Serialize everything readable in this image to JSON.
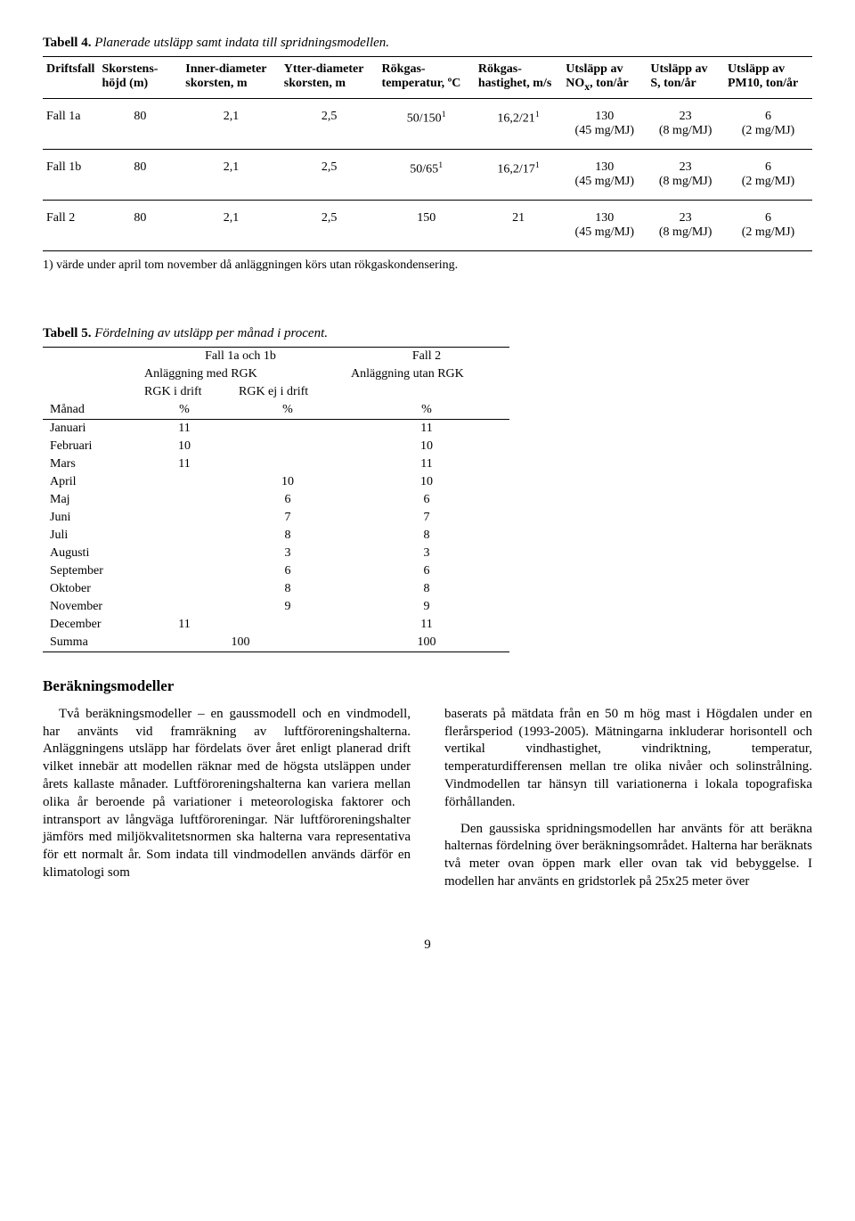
{
  "table4": {
    "caption_label": "Tabell 4.",
    "caption_text": "Planerade utsläpp samt indata till spridningsmodellen.",
    "headers": {
      "c1": "Driftsfall",
      "c2": "Skorstens-höjd (m)",
      "c3": "Inner-diameter skorsten, m",
      "c4": "Ytter-diameter skorsten, m",
      "c5": "Rökgas-temperatur, ºC",
      "c6": "Rökgas-hastighet, m/s",
      "c7a": "Utsläpp av",
      "c7b": "NO",
      "c7c": ", ton/år",
      "c8": "Utsläpp av S, ton/år",
      "c9": "Utsläpp av PM10, ton/år"
    },
    "rows": [
      {
        "name": "Fall 1a",
        "h": "80",
        "id": "2,1",
        "od": "2,5",
        "temp": "50/150",
        "temp_sup": "1",
        "vel": "16,2/21",
        "vel_sup": "1",
        "nox_a": "130",
        "nox_b": "(45 mg/MJ)",
        "s_a": "23",
        "s_b": "(8 mg/MJ)",
        "pm_a": "6",
        "pm_b": "(2 mg/MJ)"
      },
      {
        "name": "Fall 1b",
        "h": "80",
        "id": "2,1",
        "od": "2,5",
        "temp": "50/65",
        "temp_sup": "1",
        "vel": "16,2/17",
        "vel_sup": "1",
        "nox_a": "130",
        "nox_b": "(45 mg/MJ)",
        "s_a": "23",
        "s_b": "(8 mg/MJ)",
        "pm_a": "6",
        "pm_b": "(2 mg/MJ)"
      },
      {
        "name": "Fall 2",
        "h": "80",
        "id": "2,1",
        "od": "2,5",
        "temp": "150",
        "temp_sup": "",
        "vel": "21",
        "vel_sup": "",
        "nox_a": "130",
        "nox_b": "(45 mg/MJ)",
        "s_a": "23",
        "s_b": "(8 mg/MJ)",
        "pm_a": "6",
        "pm_b": "(2 mg/MJ)"
      }
    ],
    "footnote": "1) värde under april tom november då anläggningen körs utan rökgaskondensering."
  },
  "table5": {
    "caption_label": "Tabell 5.",
    "caption_text": "Fördelning av utsläpp per månad i procent.",
    "header1": {
      "a": "Fall 1a och 1b",
      "b": "Fall 2"
    },
    "header2": {
      "a": "Anläggning med RGK",
      "b": "Anläggning utan RGK"
    },
    "header3": {
      "a": "RGK i drift",
      "b": "RGK ej i drift"
    },
    "header4": {
      "m": "Månad",
      "a": "%",
      "b": "%",
      "c": "%"
    },
    "rows": [
      {
        "m": "Januari",
        "a": "11",
        "b": "",
        "c": "11"
      },
      {
        "m": "Februari",
        "a": "10",
        "b": "",
        "c": "10"
      },
      {
        "m": "Mars",
        "a": "11",
        "b": "",
        "c": "11"
      },
      {
        "m": "April",
        "a": "",
        "b": "10",
        "c": "10"
      },
      {
        "m": "Maj",
        "a": "",
        "b": "6",
        "c": "6"
      },
      {
        "m": "Juni",
        "a": "",
        "b": "7",
        "c": "7"
      },
      {
        "m": "Juli",
        "a": "",
        "b": "8",
        "c": "8"
      },
      {
        "m": "Augusti",
        "a": "",
        "b": "3",
        "c": "3"
      },
      {
        "m": "September",
        "a": "",
        "b": "6",
        "c": "6"
      },
      {
        "m": "Oktober",
        "a": "",
        "b": "8",
        "c": "8"
      },
      {
        "m": "November",
        "a": "",
        "b": "9",
        "c": "9"
      },
      {
        "m": "December",
        "a": "11",
        "b": "",
        "c": "11"
      }
    ],
    "sum": {
      "m": "Summa",
      "ab": "100",
      "c": "100"
    }
  },
  "section_heading": "Beräkningsmodeller",
  "body": {
    "left_p1": "Två beräkningsmodeller – en gaussmodell och en vindmodell, har använts vid framräkning av luftföroreningshalterna. Anläggningens utsläpp har fördelats över året enligt planerad drift vilket innebär att modellen räknar med de högsta utsläppen under årets kallaste månader. Luftföroreningshalterna kan variera mellan olika år beroende på variationer i meteorologiska faktorer och intransport av långväga luftföroreningar. När luftföroreningshalter jämförs med miljökvalitetsnormen ska halterna vara representativa för ett normalt år. Som indata till vindmodellen används därför en klimatologi som",
    "right_p1": "baserats på mätdata från en 50 m hög mast i Högdalen under en flerårsperiod (1993-2005). Mätningarna inkluderar horisontell och vertikal vindhastighet, vindriktning, temperatur, temperaturdifferensen mellan tre olika nivåer och solinstrålning. Vindmodellen tar hänsyn till variationerna i lokala topografiska förhållanden.",
    "right_p2": "Den gaussiska spridningsmodellen har använts för att beräkna halternas fördelning över beräkningsområdet. Halterna har beräknats två meter ovan öppen mark eller ovan tak vid bebyggelse. I modellen har använts en gridstorlek på 25x25 meter över"
  },
  "page_number": "9"
}
